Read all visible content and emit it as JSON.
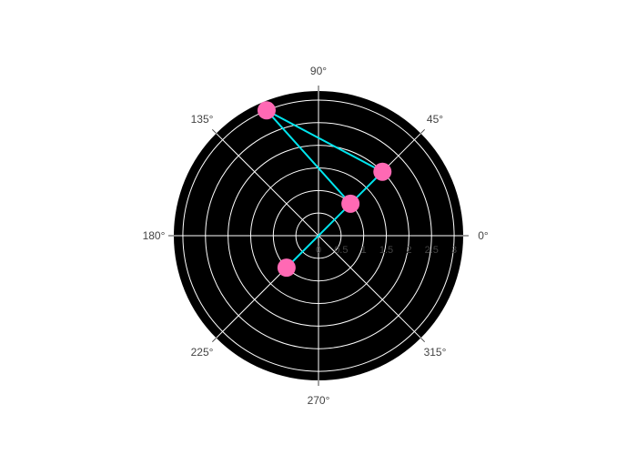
{
  "chart_data": {
    "type": "scatter",
    "subtype": "polar-line-markers",
    "series": [
      {
        "r": [
          1,
          3,
          2,
          1
        ],
        "theta": [
          45,
          112.5,
          45,
          225
        ],
        "mode": "lines+markers",
        "line_color": "#00e5ee",
        "marker_color": "#ff69b4"
      }
    ],
    "angular_axis": {
      "tick_labels": [
        "0°",
        "45°",
        "90°",
        "135°",
        "180°",
        "225°",
        "270°",
        "315°"
      ],
      "tick_values": [
        0,
        45,
        90,
        135,
        180,
        225,
        270,
        315
      ]
    },
    "radial_axis": {
      "range": [
        0,
        3.2
      ],
      "tick_values": [
        0,
        0.5,
        1,
        1.5,
        2,
        2.5,
        3
      ],
      "tick_labels": [
        "0",
        "0.5",
        "1",
        "1.5",
        "2",
        "2.5",
        "3"
      ]
    },
    "background_color": "#000000",
    "grid": true,
    "grid_color": "#ffffff"
  }
}
